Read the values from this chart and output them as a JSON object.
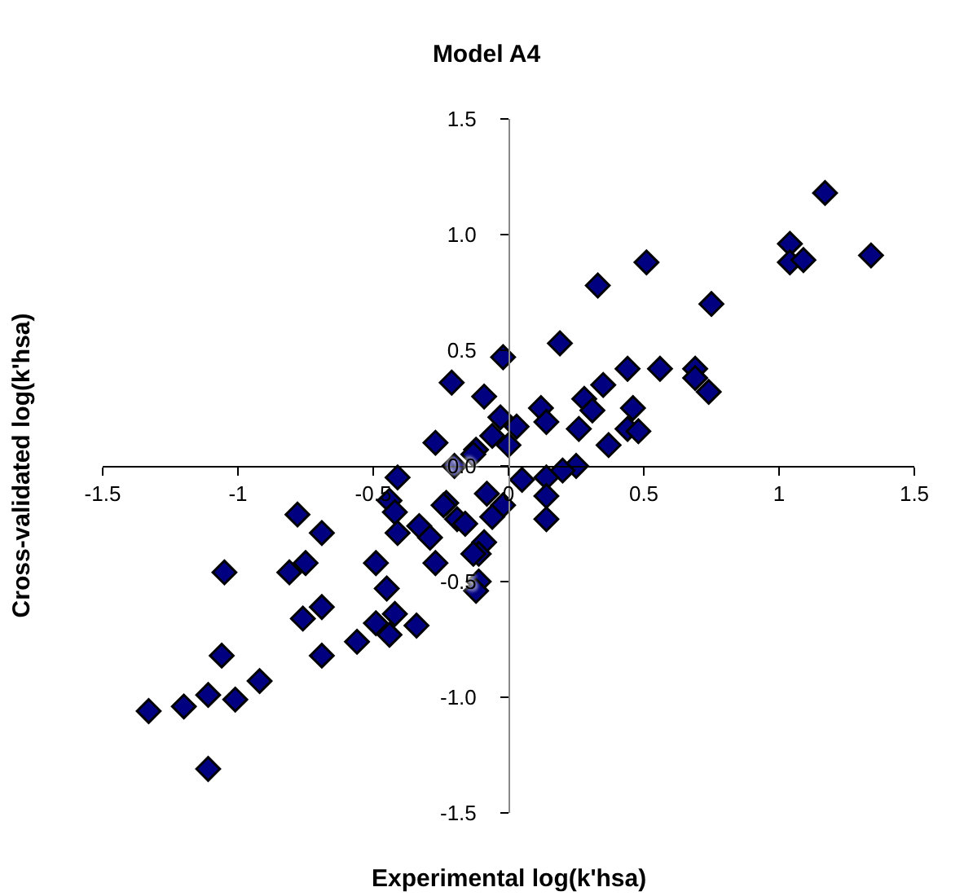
{
  "chart_data": {
    "type": "scatter",
    "title": "Model A4",
    "xlabel": "Experimental log(k'hsa)",
    "ylabel": "Cross-validated log(k'hsa)",
    "x": [
      1.17,
      1.34,
      1.04,
      1.04,
      1.09,
      0.51,
      0.33,
      0.75,
      0.19,
      -0.02,
      0.44,
      0.56,
      0.69,
      0.69,
      0.74,
      -0.09,
      0.35,
      0.28,
      0.31,
      0.46,
      0.44,
      0.48,
      0.12,
      0.14,
      0.26,
      0.37,
      -0.03,
      0.03,
      -0.06,
      0.0,
      -0.12,
      0.25,
      0.2,
      0.14,
      0.05,
      0.14,
      -0.08,
      -0.02,
      0.14,
      -0.06,
      -0.09,
      -0.11,
      -0.11,
      -0.12,
      -0.21,
      -0.27,
      -0.13,
      -0.2,
      -0.41,
      -0.44,
      -0.23,
      -0.78,
      -0.69,
      -0.42,
      -0.41,
      -0.33,
      -0.29,
      -0.24,
      -0.19,
      -0.16,
      -0.13,
      -0.27,
      -0.49,
      -0.45,
      -1.05,
      -0.81,
      -0.75,
      -0.69,
      -0.76,
      -0.49,
      -0.42,
      -0.44,
      -0.34,
      -0.56,
      -0.69,
      -1.06,
      -0.92,
      -1.11,
      -1.01,
      -1.2,
      -1.33,
      -1.11
    ],
    "values": [
      1.18,
      0.91,
      0.96,
      0.88,
      0.89,
      0.88,
      0.78,
      0.7,
      0.53,
      0.47,
      0.42,
      0.42,
      0.42,
      0.38,
      0.32,
      0.3,
      0.35,
      0.29,
      0.24,
      0.25,
      0.16,
      0.15,
      0.25,
      0.19,
      0.16,
      0.09,
      0.21,
      0.17,
      0.13,
      0.09,
      0.07,
      0.0,
      -0.02,
      -0.05,
      -0.06,
      -0.13,
      -0.12,
      -0.17,
      -0.23,
      -0.22,
      -0.33,
      -0.38,
      -0.5,
      -0.54,
      0.36,
      0.1,
      0.05,
      0.0,
      -0.05,
      -0.15,
      -0.16,
      -0.21,
      -0.29,
      -0.2,
      -0.29,
      -0.26,
      -0.31,
      -0.17,
      -0.23,
      -0.25,
      -0.38,
      -0.42,
      -0.42,
      -0.53,
      -0.46,
      -0.46,
      -0.42,
      -0.61,
      -0.66,
      -0.68,
      -0.64,
      -0.73,
      -0.69,
      -0.76,
      -0.82,
      -0.82,
      -0.93,
      -0.99,
      -1.01,
      -1.04,
      -1.06,
      -1.31
    ],
    "color": "#000080",
    "marker": "diamond",
    "xlim": [
      -1.5,
      1.5
    ],
    "ylim": [
      -1.5,
      1.5
    ],
    "xticks": [
      {
        "value": -1.5,
        "label": "-1.5"
      },
      -1,
      {
        "value": -0.5,
        "label": "-0.5"
      },
      0,
      {
        "value": 0.5,
        "label": "0.5"
      },
      1,
      {
        "value": 1.5,
        "label": "1.5"
      }
    ],
    "yticks": [
      {
        "value": -1.5,
        "label": "-1.5"
      },
      {
        "value": -1,
        "label": "-1.0"
      },
      {
        "value": -0.5,
        "label": "-0.5"
      },
      {
        "value": 0,
        "label": "0.0"
      },
      {
        "value": 0.5,
        "label": "0.5"
      },
      {
        "value": 1,
        "label": "1.0"
      },
      {
        "value": 1.5,
        "label": "1.5"
      }
    ]
  }
}
